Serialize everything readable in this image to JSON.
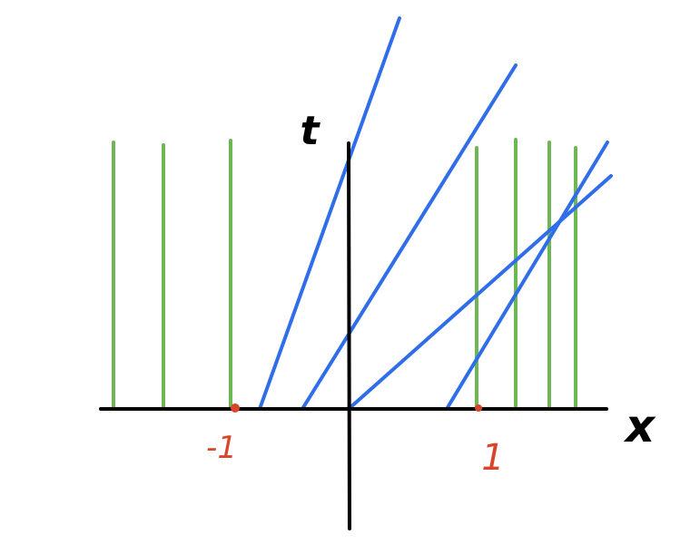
{
  "diagram": {
    "axis_labels": {
      "horizontal": "x",
      "vertical": "t"
    },
    "marks": {
      "left": "-1",
      "right": "1"
    },
    "colors": {
      "axes": "#000000",
      "vertical_lines": "#6db755",
      "slanted_lines": "#2f6ee8",
      "marks": "#d8452a"
    },
    "vertical_line_count": 7,
    "slanted_line_count": 4
  }
}
